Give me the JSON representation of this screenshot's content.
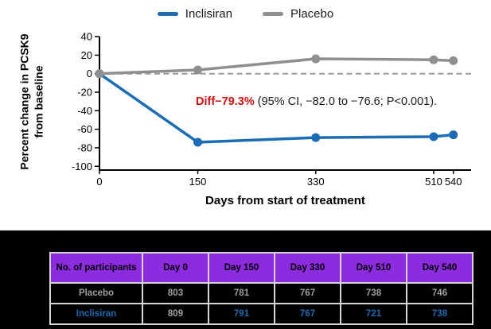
{
  "colors": {
    "inclisiran_blue": "#1b6bb5",
    "placebo_gray": "#8f8f8f",
    "annotation_red": "#cc1111",
    "header_purple": "#8c2be0",
    "table_text_gray": "#a0a0a0",
    "table_bg": "#000000"
  },
  "legend": [
    {
      "label": "Inclisiran",
      "color": "#1b6bb5"
    },
    {
      "label": "Placebo",
      "color": "#8f8f8f"
    }
  ],
  "axis": {
    "ylabel_line1": "Percent change in PCSK9",
    "ylabel_line2": "from baseline",
    "xlabel": "Days from start of treatment"
  },
  "chart_data": {
    "type": "line",
    "title": "",
    "xlabel": "Days from start of treatment",
    "ylabel": "Percent change in PCSK9 from baseline",
    "x": [
      0,
      150,
      330,
      510,
      540
    ],
    "x_tick_labels": [
      "0",
      "150",
      "330",
      "510",
      "540"
    ],
    "y_ticks": [
      40,
      20,
      0,
      -20,
      -40,
      -60,
      -80,
      -100
    ],
    "ylim": [
      -100,
      40
    ],
    "zero_reference_line": true,
    "legend_position": "top-center",
    "series": [
      {
        "name": "Inclisiran",
        "color": "#1b6bb5",
        "values": [
          0,
          -74,
          -69,
          -68,
          -66
        ]
      },
      {
        "name": "Placebo",
        "color": "#8f8f8f",
        "values": [
          0,
          4,
          16,
          15,
          14
        ]
      }
    ],
    "annotation": {
      "highlight": "Diff−79.3%",
      "rest": " (95% CI, −82.0 to −76.6; P<0.001)."
    }
  },
  "table": {
    "headers": [
      "No. of participants",
      "Day 0",
      "Day 150",
      "Day 330",
      "Day 510",
      "Day 540"
    ],
    "rows": [
      {
        "label": "Placebo",
        "label_color": "#a0a0a0",
        "values": [
          "803",
          "781",
          "767",
          "738",
          "746"
        ],
        "value_colors": [
          "#a0a0a0",
          "#a0a0a0",
          "#a0a0a0",
          "#a0a0a0",
          "#a0a0a0"
        ]
      },
      {
        "label": "Inclisiran",
        "label_color": "#1b6bb5",
        "values": [
          "809",
          "791",
          "767",
          "721",
          "738"
        ],
        "value_colors": [
          "#a0a0a0",
          "#1b6bb5",
          "#1b6bb5",
          "#1b6bb5",
          "#1b6bb5"
        ]
      }
    ]
  }
}
